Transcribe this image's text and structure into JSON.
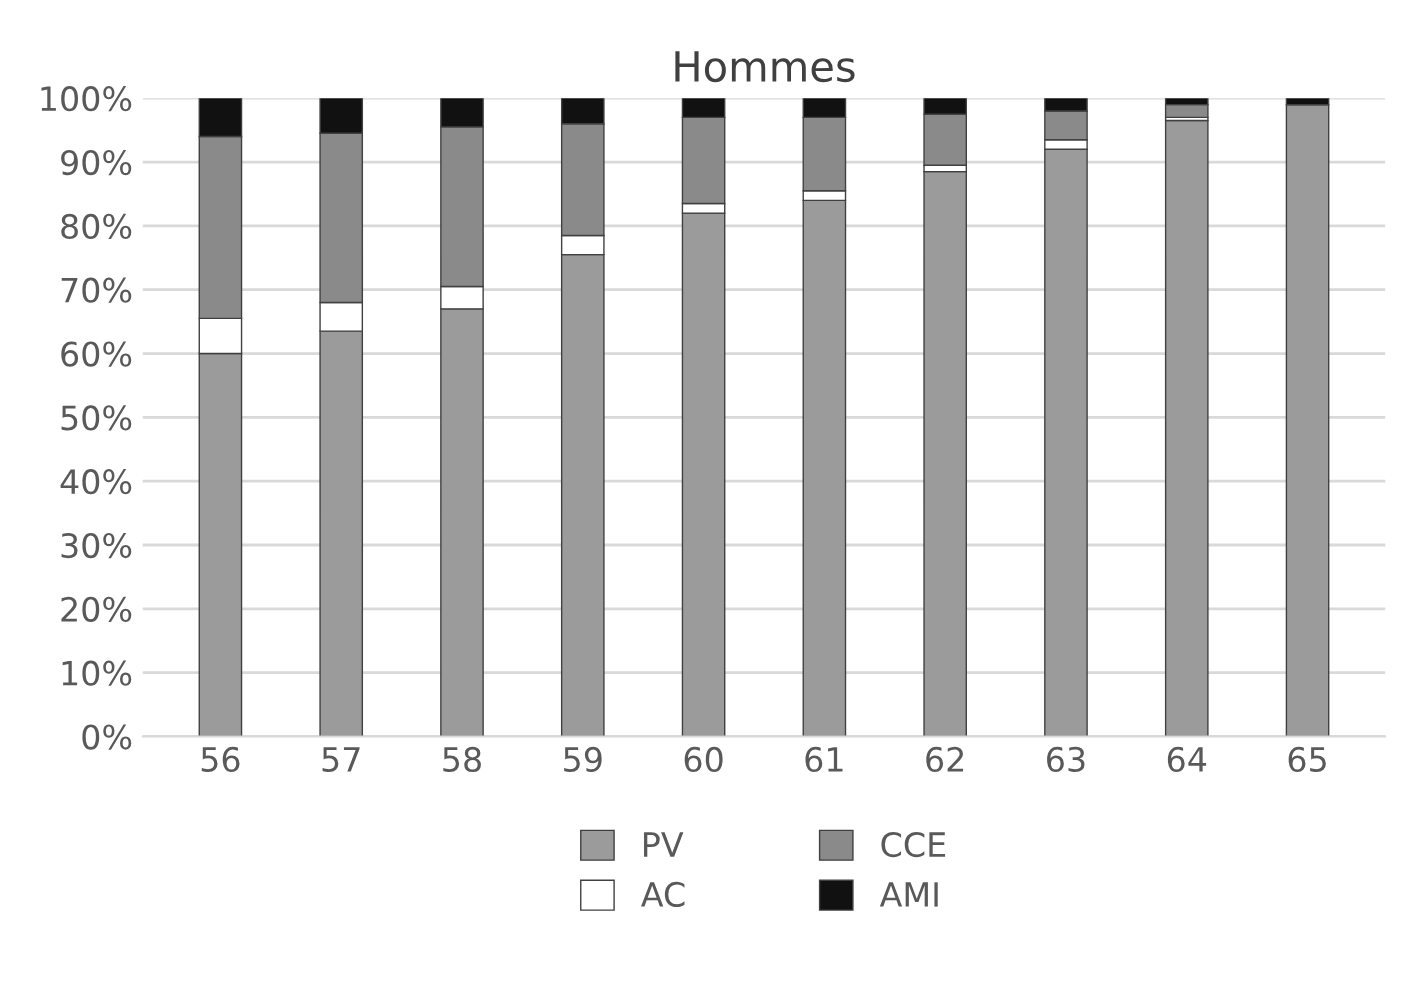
{
  "chart_data": {
    "type": "bar",
    "title": "Hommes",
    "stacked": true,
    "categories": [
      "56",
      "57",
      "58",
      "59",
      "60",
      "61",
      "62",
      "63",
      "64",
      "65"
    ],
    "series": [
      {
        "name": "PV",
        "color": "#9b9b9b",
        "values": [
          60,
          63.5,
          67,
          75.5,
          82,
          84,
          88.5,
          92,
          96.5,
          99
        ]
      },
      {
        "name": "AC",
        "color": "#ffffff",
        "values": [
          5.5,
          4.5,
          3.5,
          3,
          1.5,
          1.5,
          1,
          1.5,
          0.5,
          0
        ]
      },
      {
        "name": "CCE",
        "color": "#8a8a8a",
        "values": [
          28.5,
          26.5,
          25,
          17.5,
          13.5,
          11.5,
          8,
          4.5,
          2,
          0
        ]
      },
      {
        "name": "AMI",
        "color": "#111111",
        "values": [
          6,
          5.5,
          4.5,
          4,
          3,
          3,
          2.5,
          2,
          1,
          1
        ]
      }
    ],
    "ylim": [
      0,
      100
    ],
    "yticks": [
      {
        "value": 0,
        "label": "0%"
      },
      {
        "value": 10,
        "label": "10%"
      },
      {
        "value": 20,
        "label": "20%"
      },
      {
        "value": 30,
        "label": "30%"
      },
      {
        "value": 40,
        "label": "40%"
      },
      {
        "value": 50,
        "label": "50%"
      },
      {
        "value": 60,
        "label": "60%"
      },
      {
        "value": 70,
        "label": "70%"
      },
      {
        "value": 80,
        "label": "80%"
      },
      {
        "value": 90,
        "label": "90%"
      },
      {
        "value": 100,
        "label": "100%"
      }
    ],
    "grid": "y",
    "legend": "bottom"
  }
}
